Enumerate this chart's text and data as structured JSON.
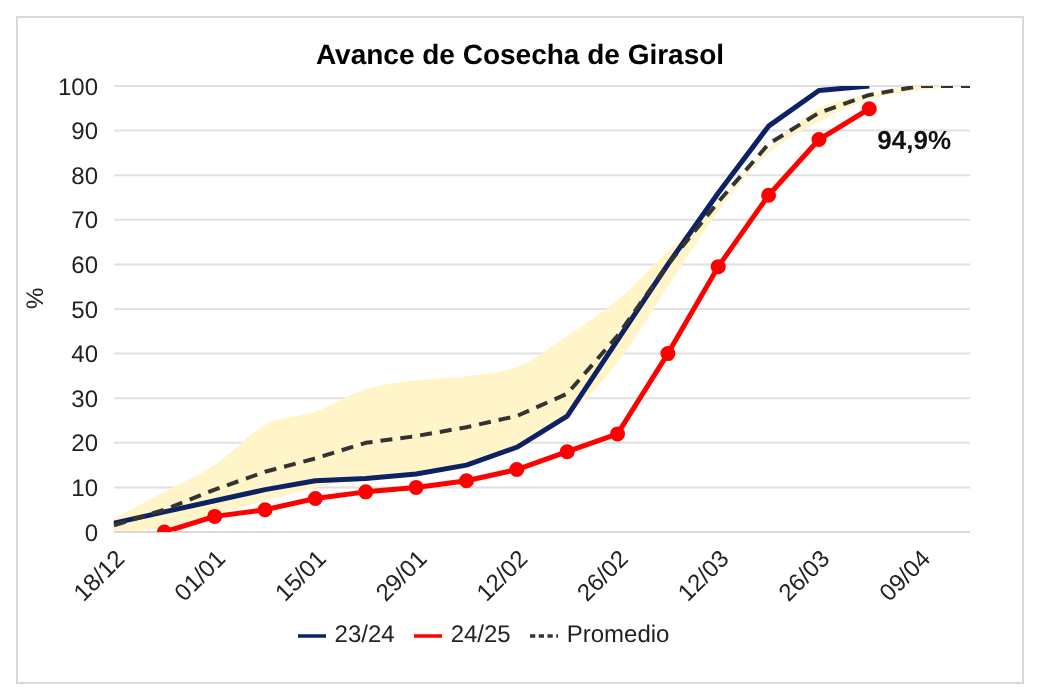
{
  "chart_data": {
    "type": "line",
    "title": "Avance de Cosecha de Girasol",
    "ylabel": "%",
    "categories": [
      "18/12",
      null,
      "01/01",
      null,
      "15/01",
      null,
      "29/01",
      null,
      "12/02",
      null,
      "26/02",
      null,
      "12/03",
      null,
      "26/03",
      null,
      "09/04",
      null
    ],
    "series": [
      {
        "name": "23/24",
        "color": "#0d2265",
        "marker": "none",
        "line_style": "solid",
        "values": [
          2,
          4.5,
          7,
          9.5,
          11.5,
          12,
          13,
          15,
          19,
          26,
          43,
          60,
          76,
          91,
          99,
          100,
          null,
          null
        ]
      },
      {
        "name": "24/25",
        "color": "#ff0000",
        "marker": "circle",
        "line_style": "solid",
        "values": [
          null,
          0,
          3.5,
          5,
          7.5,
          9,
          10,
          11.5,
          14,
          18,
          22,
          40,
          59.5,
          75.5,
          88,
          94.9,
          null,
          null
        ],
        "value_labels": [
          null,
          null,
          null,
          null,
          null,
          null,
          null,
          null,
          null,
          null,
          null,
          null,
          null,
          null,
          null,
          "94,9%",
          null,
          null
        ]
      },
      {
        "name": "Promedio",
        "color": "#333333",
        "marker": "none",
        "line_style": "dashed",
        "values": [
          1.5,
          5,
          9.5,
          13.5,
          16.5,
          20,
          21.5,
          23.5,
          26,
          31,
          44,
          60,
          74,
          87,
          94,
          98,
          100,
          100
        ],
        "lower": [
          0,
          1,
          4,
          7,
          10,
          12,
          13,
          15,
          19,
          26,
          38,
          55,
          72,
          85,
          92,
          97,
          99,
          100
        ],
        "upper": [
          3,
          9,
          15,
          24,
          27,
          32,
          34,
          35,
          37,
          44,
          52,
          63,
          74,
          86,
          95,
          98,
          100,
          100
        ]
      }
    ],
    "ylim": [
      0,
      100
    ],
    "yticks": [
      0,
      10,
      20,
      30,
      40,
      50,
      60,
      70,
      80,
      90,
      100
    ],
    "grid": "y",
    "legend": "bottom"
  }
}
